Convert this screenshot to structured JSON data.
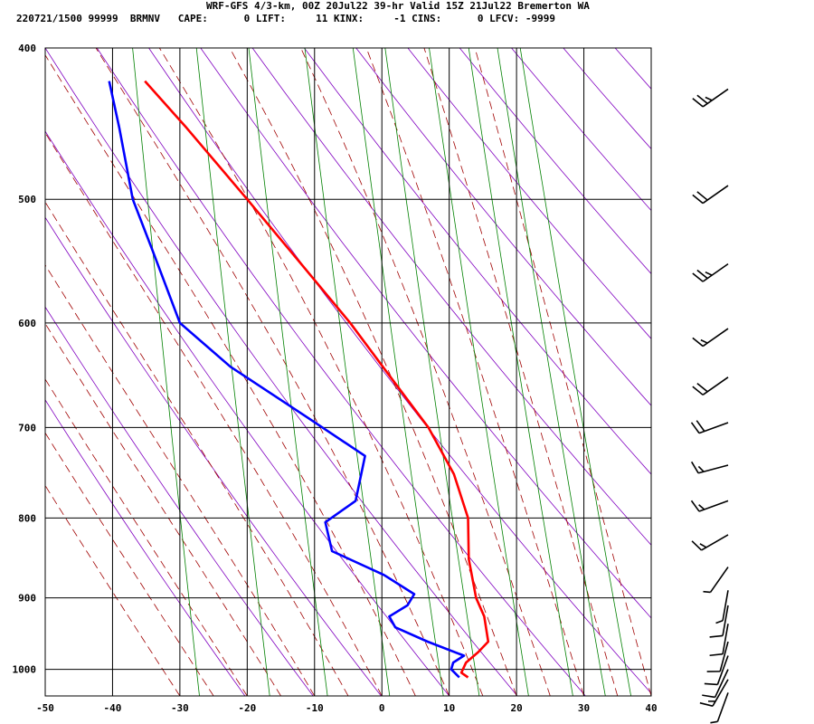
{
  "header": {
    "line1": "WRF-GFS 4/3-km, 00Z 20Jul22 39-hr Valid 15Z 21Jul22 Bremerton WA",
    "line2": "220721/1500 99999  BRMNV   CAPE:      0 LIFT:     11 KINX:     -1 CINS:      0 LFCV: -9999"
  },
  "chart_data": {
    "type": "line",
    "title": "WRF-GFS 4/3-km, 00Z 20Jul22 39-hr Valid 15Z 21Jul22 Bremerton WA",
    "xlabel": "",
    "ylabel": "",
    "x_ticks": [
      "-50",
      "-40",
      "-30",
      "-20",
      "-10",
      "0",
      "10",
      "20",
      "30",
      "40"
    ],
    "y_ticks": [
      "400",
      "500",
      "600",
      "700",
      "800",
      "900",
      "1000"
    ],
    "xlim": [
      -50,
      40
    ],
    "ylim_hpa": [
      400,
      1040
    ],
    "y_scale": "log-pressure",
    "grid": true,
    "series": [
      {
        "key": "temperature",
        "color": "#ff0000",
        "pressure": [
          1012,
          1005,
          990,
          975,
          960,
          925,
          900,
          850,
          800,
          750,
          700,
          650,
          600,
          550,
          500,
          450,
          420
        ],
        "values": [
          12.8,
          11.8,
          12.5,
          14.3,
          15.8,
          15.2,
          14.0,
          12.9,
          12.8,
          10.7,
          6.9,
          1.3,
          -4.7,
          -12.0,
          -20.0,
          -29.0,
          -35.2
        ]
      },
      {
        "key": "dewpoint",
        "color": "#0000ff",
        "pressure": [
          1012,
          1000,
          990,
          980,
          960,
          940,
          925,
          910,
          895,
          870,
          840,
          805,
          780,
          730,
          690,
          640,
          600,
          540,
          500,
          450,
          420
        ],
        "values": [
          11.5,
          10.3,
          10.6,
          12.2,
          6.8,
          2.0,
          1.1,
          3.8,
          4.8,
          0.3,
          -7.4,
          -8.4,
          -3.9,
          -2.5,
          -11.0,
          -22.5,
          -30.0,
          -34.0,
          -37.0,
          -39.0,
          -40.5
        ]
      }
    ],
    "background_lines": {
      "dry_adiabats_color": "#8000c0",
      "moist_adiabats_color": "#a00000",
      "mixing_ratio_color": "#008000",
      "isotherm_color": "#000000"
    },
    "wind_barbs": [
      {
        "pressure": 425,
        "direction_deg": 235,
        "speed_kt": 25
      },
      {
        "pressure": 490,
        "direction_deg": 235,
        "speed_kt": 20
      },
      {
        "pressure": 550,
        "direction_deg": 235,
        "speed_kt": 25
      },
      {
        "pressure": 605,
        "direction_deg": 235,
        "speed_kt": 15
      },
      {
        "pressure": 650,
        "direction_deg": 235,
        "speed_kt": 20
      },
      {
        "pressure": 695,
        "direction_deg": 250,
        "speed_kt": 20
      },
      {
        "pressure": 740,
        "direction_deg": 255,
        "speed_kt": 15
      },
      {
        "pressure": 780,
        "direction_deg": 250,
        "speed_kt": 15
      },
      {
        "pressure": 820,
        "direction_deg": 240,
        "speed_kt": 15
      },
      {
        "pressure": 860,
        "direction_deg": 215,
        "speed_kt": 5
      },
      {
        "pressure": 890,
        "direction_deg": 190,
        "speed_kt": 5
      },
      {
        "pressure": 910,
        "direction_deg": 190,
        "speed_kt": 10
      },
      {
        "pressure": 935,
        "direction_deg": 190,
        "speed_kt": 10
      },
      {
        "pressure": 960,
        "direction_deg": 195,
        "speed_kt": 10
      },
      {
        "pressure": 980,
        "direction_deg": 200,
        "speed_kt": 10
      },
      {
        "pressure": 1000,
        "direction_deg": 205,
        "speed_kt": 10
      },
      {
        "pressure": 1015,
        "direction_deg": 210,
        "speed_kt": 15
      },
      {
        "pressure": 1035,
        "direction_deg": 200,
        "speed_kt": 5
      }
    ]
  }
}
